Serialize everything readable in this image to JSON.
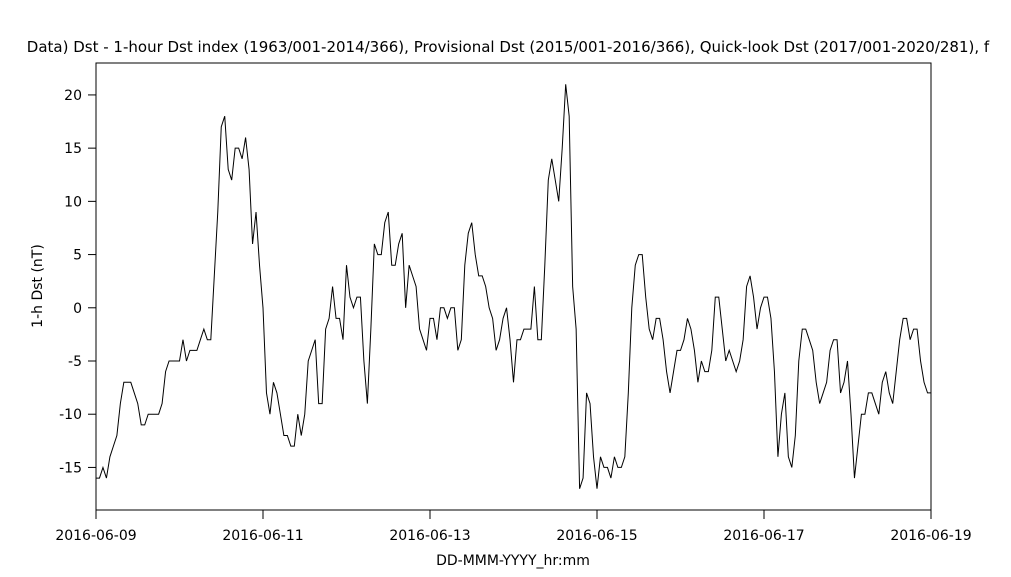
{
  "chart_data": {
    "type": "line",
    "title": "Data)  Dst - 1-hour Dst index (1963/001-2014/366), Provisional Dst (2015/001-2016/366), Quick-look Dst (2017/001-2020/281), f",
    "xlabel": "DD-MMM-YYYY_hr:mm",
    "ylabel": "1-h Dst (nT)",
    "color": "#000000",
    "xlim": [
      "2016-06-09",
      "2016-06-19"
    ],
    "xticks": [
      "2016-06-09",
      "2016-06-11",
      "2016-06-13",
      "2016-06-15",
      "2016-06-17",
      "2016-06-19"
    ],
    "ylim": [
      -19,
      23
    ],
    "yticks": [
      -15,
      -10,
      -5,
      0,
      5,
      10,
      15,
      20
    ],
    "x": [
      "2016-06-09 00:00",
      "2016-06-09 01:00",
      "2016-06-09 02:00",
      "2016-06-09 03:00",
      "2016-06-09 04:00",
      "2016-06-09 05:00",
      "2016-06-09 06:00",
      "2016-06-09 07:00",
      "2016-06-09 08:00",
      "2016-06-09 09:00",
      "2016-06-09 10:00",
      "2016-06-09 11:00",
      "2016-06-09 12:00",
      "2016-06-09 13:00",
      "2016-06-09 14:00",
      "2016-06-09 15:00",
      "2016-06-09 16:00",
      "2016-06-09 17:00",
      "2016-06-09 18:00",
      "2016-06-09 19:00",
      "2016-06-09 20:00",
      "2016-06-09 21:00",
      "2016-06-09 22:00",
      "2016-06-09 23:00",
      "2016-06-10 00:00",
      "2016-06-10 01:00",
      "2016-06-10 02:00",
      "2016-06-10 03:00",
      "2016-06-10 04:00",
      "2016-06-10 05:00",
      "2016-06-10 06:00",
      "2016-06-10 07:00",
      "2016-06-10 08:00",
      "2016-06-10 09:00",
      "2016-06-10 10:00",
      "2016-06-10 11:00",
      "2016-06-10 12:00",
      "2016-06-10 13:00",
      "2016-06-10 14:00",
      "2016-06-10 15:00",
      "2016-06-10 16:00",
      "2016-06-10 17:00",
      "2016-06-10 18:00",
      "2016-06-10 19:00",
      "2016-06-10 20:00",
      "2016-06-10 21:00",
      "2016-06-10 22:00",
      "2016-06-10 23:00",
      "2016-06-11 00:00",
      "2016-06-11 01:00",
      "2016-06-11 02:00",
      "2016-06-11 03:00",
      "2016-06-11 04:00",
      "2016-06-11 05:00",
      "2016-06-11 06:00",
      "2016-06-11 07:00",
      "2016-06-11 08:00",
      "2016-06-11 09:00",
      "2016-06-11 10:00",
      "2016-06-11 11:00",
      "2016-06-11 12:00",
      "2016-06-11 13:00",
      "2016-06-11 14:00",
      "2016-06-11 15:00",
      "2016-06-11 16:00",
      "2016-06-11 17:00",
      "2016-06-11 18:00",
      "2016-06-11 19:00",
      "2016-06-11 20:00",
      "2016-06-11 21:00",
      "2016-06-11 22:00",
      "2016-06-11 23:00",
      "2016-06-12 00:00",
      "2016-06-12 01:00",
      "2016-06-12 02:00",
      "2016-06-12 03:00",
      "2016-06-12 04:00",
      "2016-06-12 05:00",
      "2016-06-12 06:00",
      "2016-06-12 07:00",
      "2016-06-12 08:00",
      "2016-06-12 09:00",
      "2016-06-12 10:00",
      "2016-06-12 11:00",
      "2016-06-12 12:00",
      "2016-06-12 13:00",
      "2016-06-12 14:00",
      "2016-06-12 15:00",
      "2016-06-12 16:00",
      "2016-06-12 17:00",
      "2016-06-12 18:00",
      "2016-06-12 19:00",
      "2016-06-12 20:00",
      "2016-06-12 21:00",
      "2016-06-12 22:00",
      "2016-06-12 23:00",
      "2016-06-13 00:00",
      "2016-06-13 01:00",
      "2016-06-13 02:00",
      "2016-06-13 03:00",
      "2016-06-13 04:00",
      "2016-06-13 05:00",
      "2016-06-13 06:00",
      "2016-06-13 07:00",
      "2016-06-13 08:00",
      "2016-06-13 09:00",
      "2016-06-13 10:00",
      "2016-06-13 11:00",
      "2016-06-13 12:00",
      "2016-06-13 13:00",
      "2016-06-13 14:00",
      "2016-06-13 15:00",
      "2016-06-13 16:00",
      "2016-06-13 17:00",
      "2016-06-13 18:00",
      "2016-06-13 19:00",
      "2016-06-13 20:00",
      "2016-06-13 21:00",
      "2016-06-13 22:00",
      "2016-06-13 23:00",
      "2016-06-14 00:00",
      "2016-06-14 01:00",
      "2016-06-14 02:00",
      "2016-06-14 03:00",
      "2016-06-14 04:00",
      "2016-06-14 05:00",
      "2016-06-14 06:00",
      "2016-06-14 07:00",
      "2016-06-14 08:00",
      "2016-06-14 09:00",
      "2016-06-14 10:00",
      "2016-06-14 11:00",
      "2016-06-14 12:00",
      "2016-06-14 13:00",
      "2016-06-14 14:00",
      "2016-06-14 15:00",
      "2016-06-14 16:00",
      "2016-06-14 17:00",
      "2016-06-14 18:00",
      "2016-06-14 19:00",
      "2016-06-14 20:00",
      "2016-06-14 21:00",
      "2016-06-14 22:00",
      "2016-06-14 23:00",
      "2016-06-15 00:00",
      "2016-06-15 01:00",
      "2016-06-15 02:00",
      "2016-06-15 03:00",
      "2016-06-15 04:00",
      "2016-06-15 05:00",
      "2016-06-15 06:00",
      "2016-06-15 07:00",
      "2016-06-15 08:00",
      "2016-06-15 09:00",
      "2016-06-15 10:00",
      "2016-06-15 11:00",
      "2016-06-15 12:00",
      "2016-06-15 13:00",
      "2016-06-15 14:00",
      "2016-06-15 15:00",
      "2016-06-15 16:00",
      "2016-06-15 17:00",
      "2016-06-15 18:00",
      "2016-06-15 19:00",
      "2016-06-15 20:00",
      "2016-06-15 21:00",
      "2016-06-15 22:00",
      "2016-06-15 23:00",
      "2016-06-16 00:00",
      "2016-06-16 01:00",
      "2016-06-16 02:00",
      "2016-06-16 03:00",
      "2016-06-16 04:00",
      "2016-06-16 05:00",
      "2016-06-16 06:00",
      "2016-06-16 07:00",
      "2016-06-16 08:00",
      "2016-06-16 09:00",
      "2016-06-16 10:00",
      "2016-06-16 11:00",
      "2016-06-16 12:00",
      "2016-06-16 13:00",
      "2016-06-16 14:00",
      "2016-06-16 15:00",
      "2016-06-16 16:00",
      "2016-06-16 17:00",
      "2016-06-16 18:00",
      "2016-06-16 19:00",
      "2016-06-16 20:00",
      "2016-06-16 21:00",
      "2016-06-16 22:00",
      "2016-06-16 23:00",
      "2016-06-17 00:00",
      "2016-06-17 01:00",
      "2016-06-17 02:00",
      "2016-06-17 03:00",
      "2016-06-17 04:00",
      "2016-06-17 05:00",
      "2016-06-17 06:00",
      "2016-06-17 07:00",
      "2016-06-17 08:00",
      "2016-06-17 09:00",
      "2016-06-17 10:00",
      "2016-06-17 11:00",
      "2016-06-17 12:00",
      "2016-06-17 13:00",
      "2016-06-17 14:00",
      "2016-06-17 15:00",
      "2016-06-17 16:00",
      "2016-06-17 17:00",
      "2016-06-17 18:00",
      "2016-06-17 19:00",
      "2016-06-17 20:00",
      "2016-06-17 21:00",
      "2016-06-17 22:00",
      "2016-06-17 23:00",
      "2016-06-18 00:00",
      "2016-06-18 01:00",
      "2016-06-18 02:00",
      "2016-06-18 03:00",
      "2016-06-18 04:00",
      "2016-06-18 05:00",
      "2016-06-18 06:00",
      "2016-06-18 07:00",
      "2016-06-18 08:00",
      "2016-06-18 09:00",
      "2016-06-18 10:00",
      "2016-06-18 11:00",
      "2016-06-18 12:00",
      "2016-06-18 13:00",
      "2016-06-18 14:00",
      "2016-06-18 15:00",
      "2016-06-18 16:00",
      "2016-06-18 17:00",
      "2016-06-18 18:00",
      "2016-06-18 19:00",
      "2016-06-18 20:00",
      "2016-06-18 21:00",
      "2016-06-18 22:00",
      "2016-06-18 23:00",
      "2016-06-19 00:00"
    ],
    "values": [
      -16,
      -16,
      -15,
      -16,
      -14,
      -13,
      -12,
      -9,
      -7,
      -7,
      -7,
      -8,
      -9,
      -11,
      -11,
      -10,
      -10,
      -10,
      -10,
      -9,
      -6,
      -5,
      -5,
      -5,
      -5,
      -3,
      -5,
      -4,
      -4,
      -4,
      -3,
      -2,
      -3,
      -3,
      3,
      9,
      17,
      18,
      13,
      12,
      15,
      15,
      14,
      16,
      13,
      6,
      9,
      4,
      0,
      -8,
      -10,
      -7,
      -8,
      -10,
      -12,
      -12,
      -13,
      -13,
      -10,
      -12,
      -10,
      -5,
      -4,
      -3,
      -9,
      -9,
      -2,
      -1,
      2,
      -1,
      -1,
      -3,
      4,
      1,
      0,
      1,
      1,
      -5,
      -9,
      -2,
      6,
      5,
      5,
      8,
      9,
      4,
      4,
      6,
      7,
      0,
      4,
      3,
      2,
      -2,
      -3,
      -4,
      -1,
      -1,
      -3,
      0,
      0,
      -1,
      0,
      0,
      -4,
      -3,
      4,
      7,
      8,
      5,
      3,
      3,
      2,
      0,
      -1,
      -4,
      -3,
      -1,
      0,
      -3,
      -7,
      -3,
      -3,
      -2,
      -2,
      -2,
      2,
      -3,
      -3,
      4,
      12,
      14,
      12,
      10,
      15,
      21,
      18,
      2,
      -2,
      -17,
      -16,
      -8,
      -9,
      -14,
      -17,
      -14,
      -15,
      -15,
      -16,
      -14,
      -15,
      -15,
      -14,
      -8,
      0,
      4,
      5,
      5,
      1,
      -2,
      -3,
      -1,
      -1,
      -3,
      -6,
      -8,
      -6,
      -4,
      -4,
      -3,
      -1,
      -2,
      -4,
      -7,
      -5,
      -6,
      -6,
      -4,
      1,
      1,
      -2,
      -5,
      -4,
      -5,
      -6,
      -5,
      -3,
      2,
      3,
      1,
      -2,
      0,
      1,
      1,
      -1,
      -6,
      -14,
      -10,
      -8,
      -14,
      -15,
      -12,
      -5,
      -2,
      -2,
      -3,
      -4,
      -7,
      -9,
      -8,
      -7,
      -4,
      -3,
      -3,
      -8,
      -7,
      -5,
      -10,
      -16,
      -13,
      -10,
      -10,
      -8,
      -8,
      -9,
      -10,
      -7,
      -6,
      -8,
      -9,
      -6,
      -3,
      -1,
      -1,
      -3,
      -2,
      -2,
      -5,
      -7,
      -8,
      -8
    ]
  }
}
